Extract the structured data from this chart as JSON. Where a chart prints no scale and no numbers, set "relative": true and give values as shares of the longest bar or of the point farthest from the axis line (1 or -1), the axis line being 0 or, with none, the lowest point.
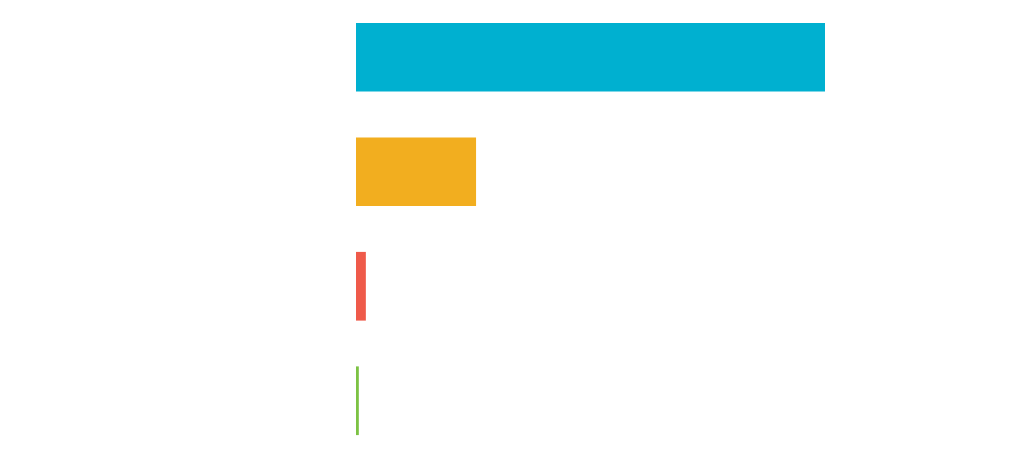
{
  "chart_data": {
    "type": "bar",
    "orientation": "horizontal",
    "relative": true,
    "categories": [
      null,
      null,
      null,
      null
    ],
    "values": [
      1,
      0.256,
      0.021,
      0.006
    ],
    "colors": [
      "#00b0d0",
      "#f2ae1f",
      "#ef5a4a",
      "#7cc243"
    ]
  }
}
